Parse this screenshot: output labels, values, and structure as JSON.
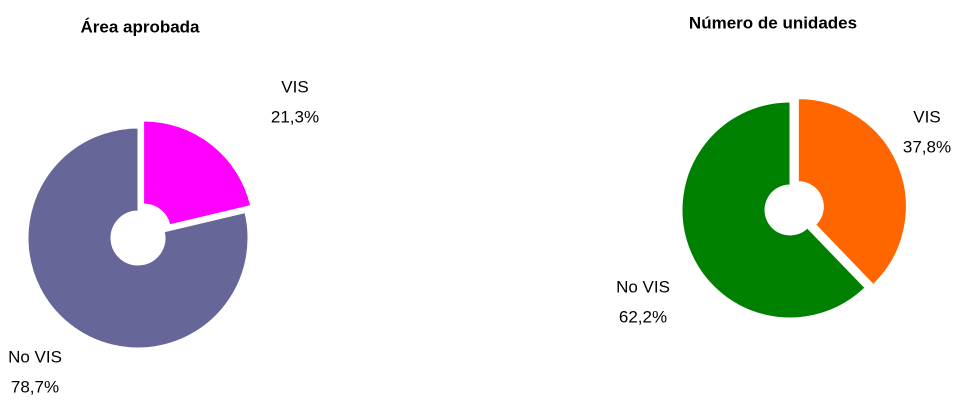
{
  "chart_data": [
    {
      "type": "pie",
      "title": "Área aprobada",
      "categories": [
        "VIS",
        "No VIS"
      ],
      "values": [
        21.3,
        78.7
      ],
      "value_labels": [
        "21,3%",
        "78,7%"
      ],
      "colors": [
        "#ff00ff",
        "#666699"
      ]
    },
    {
      "type": "pie",
      "title": "Número de unidades",
      "categories": [
        "VIS",
        "No VIS"
      ],
      "values": [
        37.8,
        62.2
      ],
      "value_labels": [
        "37,8%",
        "62,2%"
      ],
      "colors": [
        "#ff6600",
        "#008000"
      ]
    }
  ]
}
